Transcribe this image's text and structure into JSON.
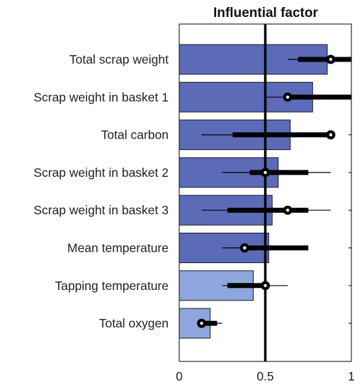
{
  "chart_data": {
    "type": "bar",
    "orientation": "horizontal",
    "title": "Influential factor",
    "xlabel": "",
    "ylabel": "",
    "xlim": [
      0,
      1
    ],
    "xticks": [
      0,
      0.5,
      1
    ],
    "xtick_labels": [
      "0",
      "0.5",
      "1"
    ],
    "reference_line": 0.5,
    "grid": false,
    "colors": {
      "dark_bar": "#5b6bb8",
      "light_bar": "#8ea6dc",
      "marker": "#000000"
    },
    "categories": [
      "Total scrap weight",
      "Scrap weight in basket 1",
      "Total carbon",
      "Scrap weight in basket 2",
      "Scrap weight in basket 3",
      "Mean temperature",
      "Tapping temperature",
      "Total oxygen"
    ],
    "values": [
      0.86,
      0.775,
      0.645,
      0.575,
      0.54,
      0.52,
      0.43,
      0.18
    ],
    "shade": [
      "dark",
      "dark",
      "dark",
      "dark",
      "dark",
      "dark",
      "light",
      "light"
    ],
    "point_estimates": [
      0.88,
      0.63,
      0.88,
      0.5,
      0.63,
      0.38,
      0.5,
      0.13
    ],
    "thick_interval": [
      [
        0.69,
        1.0
      ],
      [
        0.63,
        1.0
      ],
      [
        0.31,
        0.88
      ],
      [
        0.41,
        0.75
      ],
      [
        0.28,
        0.75
      ],
      [
        0.38,
        0.75
      ],
      [
        0.28,
        0.5
      ],
      [
        0.13,
        0.22
      ]
    ],
    "thin_interval": [
      [
        0.63,
        1.0
      ],
      [
        0.5,
        1.0
      ],
      [
        0.13,
        0.88
      ],
      [
        0.25,
        0.88
      ],
      [
        0.13,
        0.88
      ],
      [
        0.25,
        0.75
      ],
      [
        0.25,
        0.63
      ],
      [
        0.13,
        0.25
      ]
    ]
  }
}
